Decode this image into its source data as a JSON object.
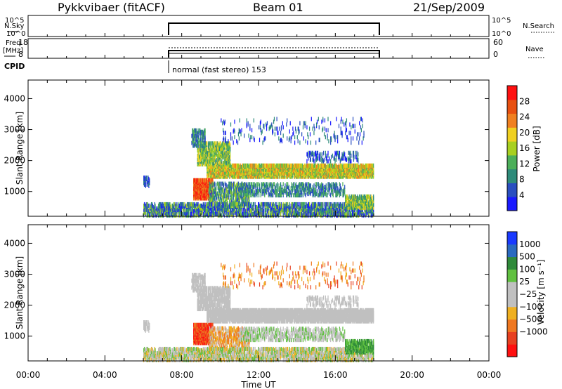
{
  "header": {
    "title": "Pykkvibaer (fitACF)",
    "beam": "Beam 01",
    "date": "21/Sep/2009"
  },
  "sky_panel": {
    "left_label": "N.Sky",
    "right_label": "N.Search",
    "left_ticks": [
      "10^5",
      "10^0"
    ],
    "right_ticks": [
      "10^5",
      "10^0"
    ]
  },
  "freq_panel": {
    "left_label_line1": "Freq.",
    "left_label_line2": "[MHz]",
    "right_label": "Nave",
    "left_ticks": [
      "18",
      "8"
    ],
    "right_ticks": [
      "60",
      "0"
    ]
  },
  "cpid": {
    "label": "CPID",
    "mode_text": "normal (fast stereo) 153"
  },
  "colors": {
    "power_scale": [
      "#1a1aff",
      "#2a4fc0",
      "#2e8b7a",
      "#4caf5a",
      "#a8d020",
      "#f0d020",
      "#f08020",
      "#e85010",
      "#ff1010"
    ],
    "velocity_scale": [
      "#ff1010",
      "#e84020",
      "#f07820",
      "#f0b020",
      "#c0c0c0",
      "#c0c0c0",
      "#60c040",
      "#2f8a3a",
      "#2a6ac0",
      "#1a3aff"
    ]
  },
  "chart_data": [
    {
      "type": "heatmap",
      "name": "power",
      "ylabel": "Slant Range [km]",
      "yticks": [
        "1000",
        "2000",
        "3000",
        "4000"
      ],
      "ylim": [
        200,
        4600
      ],
      "xlim": [
        0,
        24
      ],
      "colorbar_label": "Power [dB]",
      "colorbar_ticks": [
        "4",
        "8",
        "12",
        "16",
        "20",
        "24",
        "28"
      ],
      "colorbar_range": [
        0,
        32
      ]
    },
    {
      "type": "heatmap",
      "name": "velocity",
      "ylabel": "Slant Range [km]",
      "yticks": [
        "1000",
        "2000",
        "3000",
        "4000"
      ],
      "ylim": [
        200,
        4600
      ],
      "xlim": [
        0,
        24
      ],
      "colorbar_label": "Velocity [m s⁻¹]",
      "colorbar_ticks": [
        "1000",
        "500",
        "100",
        "25",
        "−25",
        "−100",
        "−500",
        "−1000"
      ],
      "xlabel": "Time UT",
      "xticks": [
        "00:00",
        "04:00",
        "08:00",
        "12:00",
        "16:00",
        "20:00",
        "00:00"
      ]
    }
  ]
}
